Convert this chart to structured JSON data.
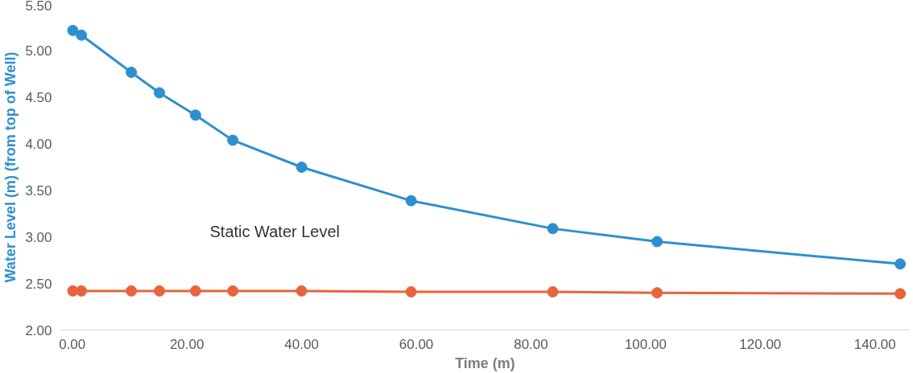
{
  "chart_data": {
    "type": "line",
    "xlabel": "Time (m)",
    "ylabel": "Water Level (m) (from top of Well)",
    "xlim": [
      -2,
      146
    ],
    "ylim": [
      2.0,
      5.5
    ],
    "xticks": [
      {
        "value": 0,
        "label": "0.00"
      },
      {
        "value": 20,
        "label": "20.00"
      },
      {
        "value": 40,
        "label": "40.00"
      },
      {
        "value": 60,
        "label": "60.00"
      },
      {
        "value": 80,
        "label": "80.00"
      },
      {
        "value": 100,
        "label": "100.00"
      },
      {
        "value": 120,
        "label": "120.00"
      },
      {
        "value": 140,
        "label": "140.00"
      }
    ],
    "yticks": [
      {
        "value": 2,
        "label": "2.00"
      },
      {
        "value": 2.5,
        "label": "2.50"
      },
      {
        "value": 3,
        "label": "3.00"
      },
      {
        "value": 3.5,
        "label": "3.50"
      },
      {
        "value": 4,
        "label": "4.00"
      },
      {
        "value": 4.5,
        "label": "4.50"
      },
      {
        "value": 5,
        "label": "5.00"
      },
      {
        "value": 5.5,
        "label": "5.50"
      }
    ],
    "marker": "circle",
    "grid": false,
    "series": [
      {
        "color": "#2e8fd0",
        "x": [
          0.1,
          1.6,
          10.3,
          15.2,
          21.5,
          28,
          40,
          59.1,
          83.8,
          102,
          144.4
        ],
        "values": [
          5.22,
          5.17,
          4.77,
          4.55,
          4.31,
          4.04,
          3.75,
          3.39,
          3.09,
          2.95,
          2.71
        ]
      },
      {
        "color": "#e8643c",
        "x": [
          0.1,
          1.6,
          10.3,
          15.2,
          21.5,
          28,
          40,
          59.1,
          83.8,
          102,
          144.4
        ],
        "values": [
          2.42,
          2.42,
          2.42,
          2.42,
          2.42,
          2.42,
          2.42,
          2.41,
          2.41,
          2.4,
          2.39
        ]
      }
    ],
    "annotations": [
      "Static Water Level"
    ]
  }
}
